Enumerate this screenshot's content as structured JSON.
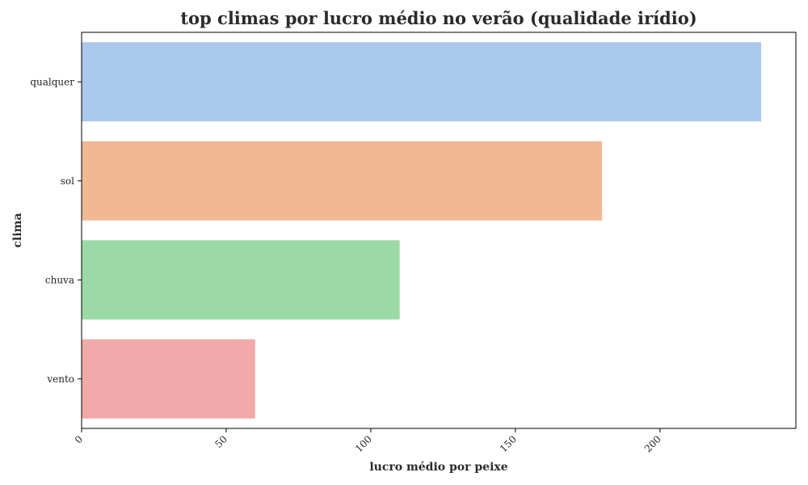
{
  "chart_data": {
    "type": "bar",
    "orientation": "horizontal",
    "title": "top climas por lucro médio no verão (qualidade irídio)",
    "xlabel": "lucro médio por peixe",
    "ylabel": "clima",
    "categories": [
      "qualquer",
      "sol",
      "chuva",
      "vento"
    ],
    "values": [
      235,
      180,
      110,
      60
    ],
    "colors": [
      "#abc9ed",
      "#f1b894",
      "#9bdaa6",
      "#f1aaa9"
    ],
    "xlim": [
      0,
      247
    ],
    "xticks": [
      0,
      50,
      100,
      150,
      200
    ],
    "xtick_labels": [
      "0",
      "50",
      "100",
      "150",
      "200"
    ],
    "grid": false,
    "legend": "none"
  }
}
